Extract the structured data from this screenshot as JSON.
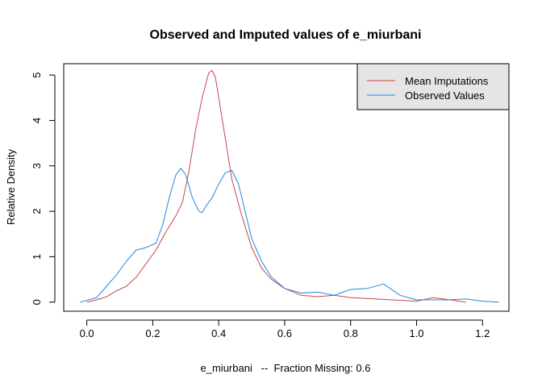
{
  "chart_data": {
    "type": "line",
    "title": "Observed and Imputed values of e_miurbani",
    "xlabel": "e_miurbani   --  Fraction Missing: 0.6",
    "ylabel": "Relative Density",
    "xlim": [
      -0.07,
      1.28
    ],
    "ylim": [
      -0.2,
      5.25
    ],
    "xticks": [
      "0.0",
      "0.2",
      "0.4",
      "0.6",
      "0.8",
      "1.0",
      "1.2"
    ],
    "yticks": [
      "0",
      "1",
      "2",
      "3",
      "4",
      "5"
    ],
    "legend": {
      "position": "top-right",
      "background": "#e5e5e5"
    },
    "series": [
      {
        "name": "Mean Imputations",
        "color": "#c8464b",
        "x": [
          0.0,
          0.03,
          0.06,
          0.09,
          0.12,
          0.15,
          0.18,
          0.21,
          0.24,
          0.27,
          0.29,
          0.31,
          0.33,
          0.35,
          0.37,
          0.38,
          0.39,
          0.4,
          0.42,
          0.44,
          0.47,
          0.5,
          0.53,
          0.56,
          0.6,
          0.65,
          0.7,
          0.75,
          0.8,
          0.85,
          0.9,
          0.95,
          1.0,
          1.05,
          1.1,
          1.15
        ],
        "y": [
          0.0,
          0.05,
          0.12,
          0.25,
          0.35,
          0.55,
          0.85,
          1.15,
          1.55,
          1.9,
          2.2,
          2.9,
          3.8,
          4.5,
          5.05,
          5.1,
          4.95,
          4.5,
          3.6,
          2.7,
          1.9,
          1.2,
          0.75,
          0.5,
          0.3,
          0.15,
          0.12,
          0.15,
          0.1,
          0.08,
          0.06,
          0.04,
          0.02,
          0.1,
          0.05,
          0.0
        ]
      },
      {
        "name": "Observed Values",
        "color": "#1e88e5",
        "x": [
          -0.02,
          0.03,
          0.06,
          0.09,
          0.12,
          0.15,
          0.18,
          0.21,
          0.23,
          0.25,
          0.27,
          0.285,
          0.3,
          0.32,
          0.34,
          0.35,
          0.36,
          0.38,
          0.4,
          0.42,
          0.44,
          0.46,
          0.48,
          0.5,
          0.53,
          0.56,
          0.6,
          0.65,
          0.7,
          0.75,
          0.8,
          0.85,
          0.9,
          0.95,
          1.0,
          1.05,
          1.1,
          1.15,
          1.2,
          1.25
        ],
        "y": [
          0.0,
          0.1,
          0.35,
          0.6,
          0.9,
          1.15,
          1.2,
          1.3,
          1.7,
          2.3,
          2.8,
          2.95,
          2.8,
          2.3,
          2.0,
          1.97,
          2.1,
          2.3,
          2.6,
          2.85,
          2.9,
          2.6,
          2.0,
          1.4,
          0.9,
          0.55,
          0.3,
          0.2,
          0.22,
          0.15,
          0.28,
          0.3,
          0.4,
          0.15,
          0.05,
          0.05,
          0.05,
          0.07,
          0.02,
          0.0
        ]
      }
    ]
  }
}
